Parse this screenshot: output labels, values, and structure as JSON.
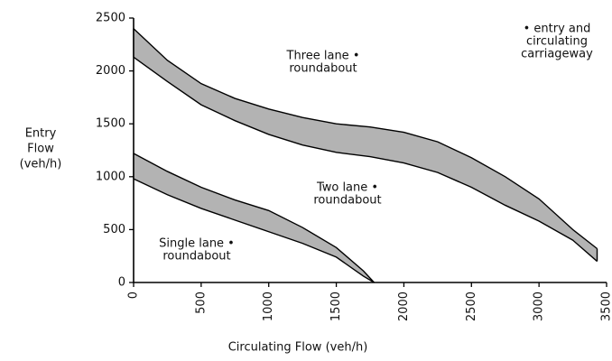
{
  "chart_data": {
    "type": "band",
    "y_label": [
      "Entry",
      "Flow",
      "(veh/h)"
    ],
    "x_label": "Circulating Flow (veh/h)",
    "xlim": [
      0,
      3500
    ],
    "ylim": [
      0,
      2500
    ],
    "xticks": [
      0,
      500,
      1000,
      1500,
      2000,
      2500,
      3000,
      3500
    ],
    "yticks": [
      0,
      500,
      1000,
      1500,
      2000,
      2500
    ],
    "series": [
      {
        "color": "#9a9a9a",
        "x": [
          0,
          250,
          500,
          750,
          1000,
          1250,
          1500,
          1700,
          1780
        ],
        "high": [
          1220,
          1050,
          900,
          780,
          680,
          520,
          330,
          110,
          0
        ],
        "low": [
          980,
          830,
          700,
          590,
          480,
          370,
          240,
          60,
          0
        ]
      },
      {
        "color": "#9a9a9a",
        "x": [
          0,
          250,
          500,
          750,
          1000,
          1250,
          1500,
          1750,
          2000,
          2250,
          2500,
          2750,
          3000,
          3250,
          3430
        ],
        "high": [
          2400,
          2100,
          1880,
          1740,
          1640,
          1560,
          1500,
          1470,
          1420,
          1330,
          1180,
          1000,
          790,
          500,
          320
        ],
        "low": [
          2130,
          1900,
          1680,
          1530,
          1400,
          1300,
          1230,
          1190,
          1130,
          1040,
          900,
          730,
          580,
          400,
          200
        ]
      }
    ],
    "annotations": [
      [
        "Three lane •",
        "roundabout"
      ],
      [
        "Two lane •",
        "roundabout"
      ],
      [
        "Single lane •",
        "roundabout"
      ],
      [
        "• entry and",
        "circulating",
        "carriageway"
      ]
    ]
  }
}
